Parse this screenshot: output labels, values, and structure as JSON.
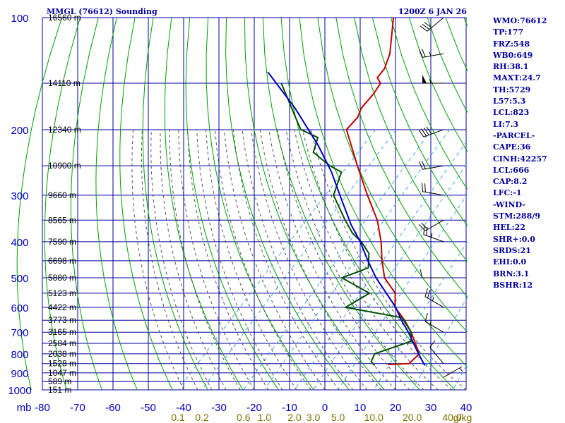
{
  "chart_data": {
    "type": "skew-t",
    "title": "MMGL (76612) Sounding",
    "valid_time": "1200Z  6 JAN 26",
    "pressure_unit": "mb",
    "temperature_unit": "C",
    "mixing_ratio_unit": "g/kg",
    "pressure_levels": [
      100,
      200,
      300,
      400,
      500,
      600,
      700,
      800,
      900,
      1000
    ],
    "pressure_labels": [
      "100",
      "200",
      "300",
      "400",
      "500",
      "600",
      "700",
      "800",
      "900",
      "1000"
    ],
    "temperature_ticks": [
      -80,
      -70,
      -60,
      -50,
      -40,
      -30,
      -20,
      -10,
      0,
      10,
      20,
      30,
      40
    ],
    "temperature_tick_labels": [
      "-80",
      "-70",
      "-60",
      "-50",
      "-40",
      "-30",
      "-20",
      "-10",
      "0",
      "10",
      "20",
      "30",
      "40"
    ],
    "mixing_ratio_labels": [
      "0.1",
      "0.2",
      "0.6",
      "1.0",
      "2.0",
      "3.0",
      "5.0",
      "10.0",
      "20.0",
      "40.0"
    ],
    "height_labels": [
      {
        "p": 100,
        "label": "16560 m"
      },
      {
        "p": 150,
        "label": "14110 m"
      },
      {
        "p": 200,
        "label": "12340 m"
      },
      {
        "p": 250,
        "label": "10900 m"
      },
      {
        "p": 300,
        "label": "9660 m"
      },
      {
        "p": 350,
        "label": "8565 m"
      },
      {
        "p": 400,
        "label": "7590 m"
      },
      {
        "p": 450,
        "label": "6698 m"
      },
      {
        "p": 500,
        "label": "5880 m"
      },
      {
        "p": 550,
        "label": "5123 m"
      },
      {
        "p": 600,
        "label": "4422 m"
      },
      {
        "p": 650,
        "label": "3773 m"
      },
      {
        "p": 700,
        "label": "3165 m"
      },
      {
        "p": 750,
        "label": "2584 m"
      },
      {
        "p": 800,
        "label": "2038 m"
      },
      {
        "p": 850,
        "label": "1528 m"
      },
      {
        "p": 900,
        "label": "1047 m"
      },
      {
        "p": 950,
        "label": "589 m"
      },
      {
        "p": 1000,
        "label": "151 m"
      }
    ],
    "series": [
      {
        "name": "Temperature",
        "color": "#c00000",
        "points": [
          [
            100,
            -80.9
          ],
          [
            125,
            -72.2
          ],
          [
            137,
            -69.7
          ],
          [
            145,
            -69.3
          ],
          [
            150,
            -66.9
          ],
          [
            160,
            -66.0
          ],
          [
            175,
            -65.6
          ],
          [
            185,
            -64.2
          ],
          [
            200,
            -64.0
          ],
          [
            250,
            -51.2
          ],
          [
            300,
            -40.4
          ],
          [
            350,
            -30.9
          ],
          [
            400,
            -24.0
          ],
          [
            450,
            -18.6
          ],
          [
            500,
            -13.3
          ],
          [
            550,
            -6.1
          ],
          [
            600,
            -2.4
          ],
          [
            650,
            3.8
          ],
          [
            700,
            8.9
          ],
          [
            800,
            17.0
          ],
          [
            850,
            16.8
          ],
          [
            855,
            11.0
          ]
        ]
      },
      {
        "name": "Dewpoint",
        "color": "#005000",
        "points": [
          [
            150,
            -95.0
          ],
          [
            190,
            -80.2
          ],
          [
            200,
            -76.9
          ],
          [
            210,
            -70.0
          ],
          [
            230,
            -67.3
          ],
          [
            250,
            -59.0
          ],
          [
            260,
            -54.0
          ],
          [
            300,
            -50.0
          ],
          [
            350,
            -40.0
          ],
          [
            380,
            -34.3
          ],
          [
            400,
            -29.6
          ],
          [
            430,
            -24.3
          ],
          [
            470,
            -20.6
          ],
          [
            500,
            -25.4
          ],
          [
            550,
            -13.4
          ],
          [
            600,
            -16.4
          ],
          [
            640,
            2.4
          ],
          [
            700,
            8.9
          ],
          [
            740,
            11.3
          ],
          [
            800,
            4.4
          ],
          [
            840,
            5.5
          ],
          [
            860,
            7.5
          ]
        ]
      },
      {
        "name": "Parcel",
        "color": "#0000c0",
        "points": [
          [
            140,
            -101.8
          ],
          [
            175,
            -84.4
          ],
          [
            220,
            -67.9
          ],
          [
            260,
            -56.8
          ],
          [
            300,
            -48.2
          ],
          [
            360,
            -37.1
          ],
          [
            400,
            -29.9
          ],
          [
            450,
            -22.6
          ],
          [
            500,
            -15.7
          ],
          [
            600,
            -2.2
          ],
          [
            650,
            2.9
          ],
          [
            700,
            8.1
          ],
          [
            800,
            16.8
          ],
          [
            860,
            21.7
          ]
        ]
      }
    ],
    "wind_barbs": [
      {
        "p": 100,
        "dir": 230,
        "kt": 30
      },
      {
        "p": 125,
        "dir": 260,
        "kt": 25
      },
      {
        "p": 150,
        "dir": 270,
        "kt": 55
      },
      {
        "p": 200,
        "dir": 250,
        "kt": 40
      },
      {
        "p": 250,
        "dir": 260,
        "kt": 20
      },
      {
        "p": 300,
        "dir": 280,
        "kt": 20
      },
      {
        "p": 350,
        "dir": 240,
        "kt": 20
      },
      {
        "p": 400,
        "dir": 290,
        "kt": 25
      },
      {
        "p": 500,
        "dir": 270,
        "kt": 10
      },
      {
        "p": 600,
        "dir": 300,
        "kt": 25
      },
      {
        "p": 700,
        "dir": 300,
        "kt": 15
      },
      {
        "p": 850,
        "dir": 320,
        "kt": 10
      },
      {
        "p": 925,
        "dir": 60,
        "kt": 5
      }
    ],
    "parameters": [
      "WMO:76612",
      "TP:177",
      "FRZ:548",
      "WB0:649",
      "RH:38.1",
      "MAXT:24.7",
      "TH:5729",
      "L57:5.3",
      "LCL:823",
      "LI:7.3",
      "-PARCEL-",
      "CAPE:36",
      "CINH:42257",
      "LCL:666",
      "CAP:8.2",
      "LFC:-1",
      "-WIND-",
      "STM:288/9",
      "HEL:22",
      "SHR+:0.0",
      "SRDS:21",
      "EHI:0.0",
      "BRN:3.1",
      "BSHR:12"
    ],
    "colors": {
      "isobar": "#0000a0",
      "isotherm": "#0000a0",
      "dry_adiabat": "#00a000",
      "moist_adiabat": "#505050",
      "mixing_ratio": "#40a0e0",
      "wind_barb": "#000000"
    }
  }
}
